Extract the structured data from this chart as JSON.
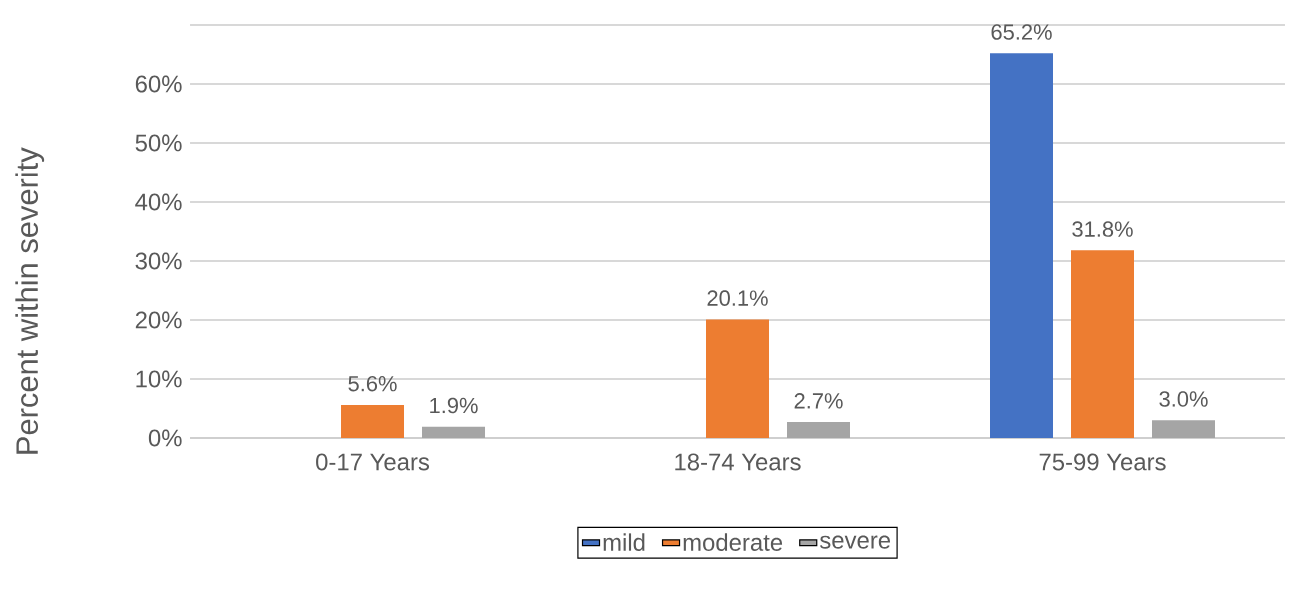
{
  "chart_data": {
    "type": "bar",
    "ylabel": "Percent within severity",
    "categories": [
      "0-17 Years",
      "18-74 Years",
      "75-99 Years"
    ],
    "series": [
      {
        "name": "mild",
        "color": "#4472c4",
        "values": [
          null,
          null,
          65.2
        ],
        "value_labels": [
          null,
          null,
          "65.2%"
        ]
      },
      {
        "name": "moderate",
        "color": "#ed7d31",
        "values": [
          5.6,
          20.1,
          31.8
        ],
        "value_labels": [
          "5.6%",
          "20.1%",
          "31.8%"
        ]
      },
      {
        "name": "severe",
        "color": "#a5a5a5",
        "values": [
          1.9,
          2.7,
          3.0
        ],
        "value_labels": [
          "1.9%",
          "2.7%",
          "3.0%"
        ]
      }
    ],
    "ylim": [
      0,
      70
    ],
    "yticks": [
      {
        "value": 0,
        "label": "0%"
      },
      {
        "value": 10,
        "label": "10%"
      },
      {
        "value": 20,
        "label": "20%"
      },
      {
        "value": 30,
        "label": "30%"
      },
      {
        "value": 40,
        "label": "40%"
      },
      {
        "value": 50,
        "label": "50%"
      },
      {
        "value": 60,
        "label": "60%"
      },
      {
        "value": 70,
        "label": null
      }
    ],
    "grid": "y",
    "legend": "bottom"
  }
}
